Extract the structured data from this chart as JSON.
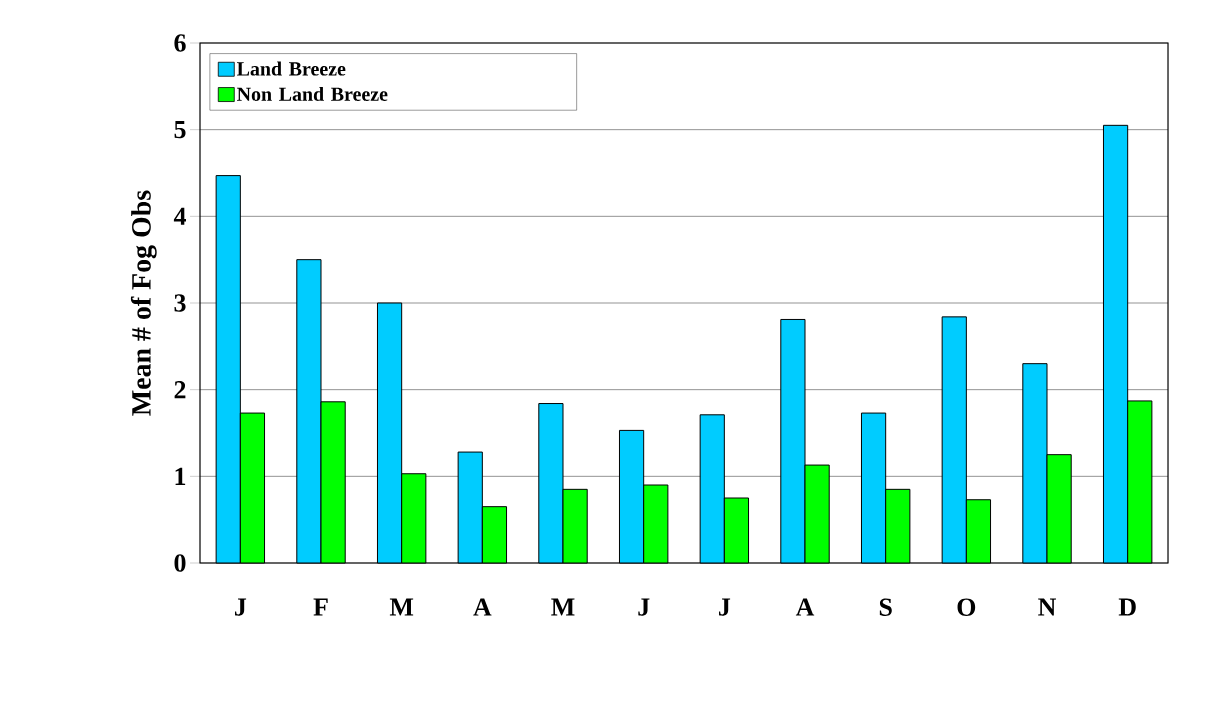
{
  "chart_data": {
    "type": "bar",
    "ylabel": "Mean # of  Fog Obs",
    "categories": [
      "J",
      "F",
      "M",
      "A",
      "M",
      "J",
      "J",
      "A",
      "S",
      "O",
      "N",
      "D"
    ],
    "series": [
      {
        "name": "Land Breeze",
        "color": "#00ccff",
        "values": [
          4.47,
          3.5,
          3.0,
          1.28,
          1.84,
          1.53,
          1.71,
          2.81,
          1.73,
          2.84,
          2.3,
          5.05
        ]
      },
      {
        "name": "Non Land Breeze",
        "color": "#00ff00",
        "values": [
          1.73,
          1.86,
          1.03,
          0.65,
          0.85,
          0.9,
          0.75,
          1.13,
          0.85,
          0.73,
          1.25,
          1.87
        ]
      }
    ],
    "ylim": [
      0,
      6
    ],
    "yticks": [
      0,
      1,
      2,
      3,
      4,
      5,
      6
    ],
    "grid": "y",
    "legend": "top left"
  }
}
